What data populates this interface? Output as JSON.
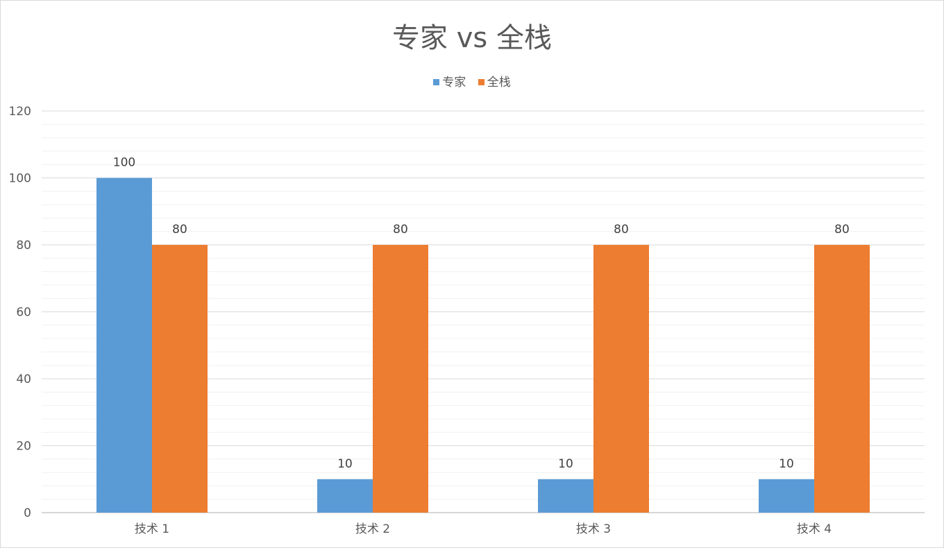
{
  "chart_data": {
    "type": "bar",
    "title": "专家 vs 全栈",
    "xlabel": "",
    "ylabel": "",
    "categories": [
      "技术 1",
      "技术 2",
      "技术 3",
      "技术 4"
    ],
    "series": [
      {
        "name": "专家",
        "values": [
          100,
          10,
          10,
          10
        ],
        "color": "#5b9bd5"
      },
      {
        "name": "全栈",
        "values": [
          80,
          80,
          80,
          80
        ],
        "color": "#ed7d31"
      }
    ],
    "ylim": [
      0,
      120
    ],
    "yticks": [
      0,
      20,
      40,
      60,
      80,
      100,
      120
    ],
    "legend": "top",
    "grid": true
  }
}
